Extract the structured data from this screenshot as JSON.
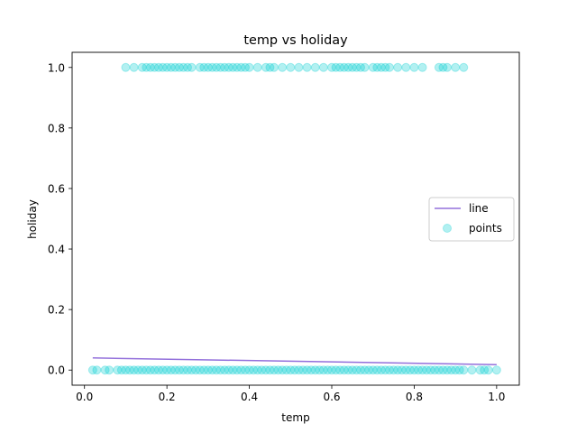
{
  "chart_data": {
    "type": "scatter",
    "title": "temp vs holiday",
    "xlabel": "temp",
    "ylabel": "holiday",
    "xlim": [
      -0.03,
      1.055
    ],
    "ylim": [
      -0.05,
      1.05
    ],
    "xticks": [
      0.0,
      0.2,
      0.4,
      0.6,
      0.8,
      1.0
    ],
    "xtick_labels": [
      "0.0",
      "0.2",
      "0.4",
      "0.6",
      "0.8",
      "1.0"
    ],
    "yticks": [
      0.0,
      0.2,
      0.4,
      0.6,
      0.8,
      1.0
    ],
    "ytick_labels": [
      "0.0",
      "0.2",
      "0.4",
      "0.6",
      "0.8",
      "1.0"
    ],
    "legend_position": "center-right",
    "series": [
      {
        "name": "line",
        "kind": "line",
        "color": "#9370db",
        "x": [
          0.02,
          1.0
        ],
        "y": [
          0.04,
          0.018
        ]
      },
      {
        "name": "points",
        "kind": "scatter",
        "color": "#00ced1",
        "alpha": 0.3,
        "points_y1": {
          "y": 1,
          "x": [
            0.1,
            0.12,
            0.14,
            0.15,
            0.16,
            0.17,
            0.18,
            0.19,
            0.2,
            0.21,
            0.22,
            0.23,
            0.24,
            0.25,
            0.26,
            0.28,
            0.29,
            0.3,
            0.31,
            0.32,
            0.33,
            0.34,
            0.35,
            0.36,
            0.37,
            0.38,
            0.39,
            0.4,
            0.42,
            0.44,
            0.45,
            0.46,
            0.48,
            0.5,
            0.52,
            0.54,
            0.56,
            0.58,
            0.6,
            0.61,
            0.62,
            0.63,
            0.64,
            0.65,
            0.66,
            0.67,
            0.68,
            0.7,
            0.71,
            0.72,
            0.73,
            0.74,
            0.76,
            0.78,
            0.8,
            0.82,
            0.86,
            0.87,
            0.88,
            0.9,
            0.92
          ]
        },
        "points_y0": {
          "y": 0,
          "x": [
            0.02,
            0.03,
            0.05,
            0.06,
            0.08,
            0.09,
            0.1,
            0.11,
            0.12,
            0.13,
            0.14,
            0.15,
            0.16,
            0.17,
            0.18,
            0.19,
            0.2,
            0.21,
            0.22,
            0.23,
            0.24,
            0.25,
            0.26,
            0.27,
            0.28,
            0.29,
            0.3,
            0.31,
            0.32,
            0.33,
            0.34,
            0.35,
            0.36,
            0.37,
            0.38,
            0.39,
            0.4,
            0.41,
            0.42,
            0.43,
            0.44,
            0.45,
            0.46,
            0.47,
            0.48,
            0.49,
            0.5,
            0.51,
            0.52,
            0.53,
            0.54,
            0.55,
            0.56,
            0.57,
            0.58,
            0.59,
            0.6,
            0.61,
            0.62,
            0.63,
            0.64,
            0.65,
            0.66,
            0.67,
            0.68,
            0.69,
            0.7,
            0.71,
            0.72,
            0.73,
            0.74,
            0.75,
            0.76,
            0.77,
            0.78,
            0.79,
            0.8,
            0.81,
            0.82,
            0.83,
            0.84,
            0.85,
            0.86,
            0.87,
            0.88,
            0.89,
            0.9,
            0.91,
            0.92,
            0.94,
            0.96,
            0.97,
            0.98,
            1.0
          ]
        }
      }
    ]
  }
}
